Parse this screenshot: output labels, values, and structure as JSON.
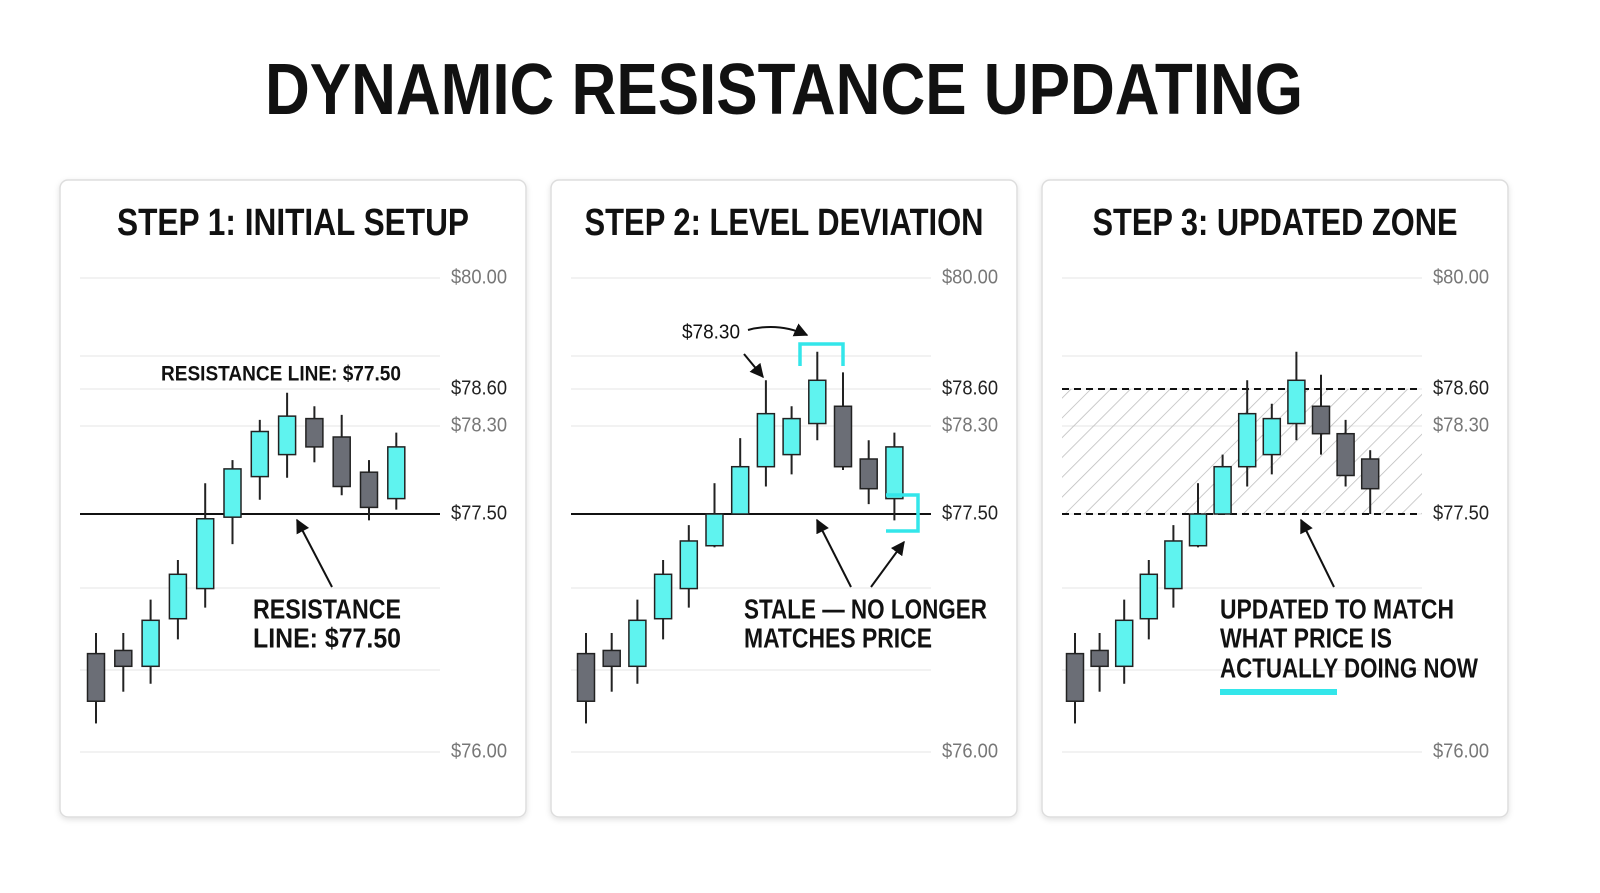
{
  "title": "DYNAMIC RESISTANCE UPDATING",
  "chart_data": [
    {
      "type": "candlestick",
      "title": "STEP 1: INITIAL SETUP",
      "yticks": [
        {
          "value": 80,
          "label": "$80.00"
        },
        {
          "value": 78.6,
          "label": "$78.60"
        },
        {
          "value": 78.3,
          "label": "$78.30"
        },
        {
          "value": 77.5,
          "label": "$77.50"
        },
        {
          "value": 76,
          "label": "$76.00"
        }
      ],
      "ylim": [
        76,
        80
      ],
      "open": [
        76.62,
        76.64,
        76.54,
        76.84,
        77.03,
        77.48,
        77.84,
        78.04,
        78.36,
        78.2,
        77.88,
        77.64
      ],
      "high": [
        76.75,
        76.75,
        76.96,
        77.21,
        77.78,
        77.99,
        78.35,
        78.57,
        78.46,
        78.39,
        77.99,
        78.24
      ],
      "low": [
        76.18,
        76.38,
        76.43,
        76.71,
        76.91,
        77.31,
        77.63,
        77.83,
        77.97,
        77.67,
        77.46,
        77.54
      ],
      "close": [
        76.32,
        76.54,
        76.83,
        77.12,
        77.47,
        77.91,
        78.25,
        78.38,
        78.11,
        77.75,
        77.56,
        78.11
      ],
      "up_color": "#5ff3ef",
      "down_color": "#6b6e76",
      "resistance": 77.5,
      "label": "RESISTANCE LINE: $77.50",
      "annotation": [
        "RESISTANCE",
        "LINE: $77.50"
      ]
    },
    {
      "type": "candlestick",
      "title": "STEP 2: LEVEL DEVIATION",
      "yticks": [
        {
          "value": 80,
          "label": "$80.00"
        },
        {
          "value": 78.6,
          "label": "$78.60"
        },
        {
          "value": 78.3,
          "label": "$78.30"
        },
        {
          "value": 77.5,
          "label": "$77.50"
        },
        {
          "value": 76,
          "label": "$76.00"
        }
      ],
      "ylim": [
        76,
        80
      ],
      "open": [
        76.62,
        76.64,
        76.54,
        76.84,
        77.03,
        77.3,
        77.5,
        77.93,
        78.04,
        78.32,
        78.46,
        78.0,
        77.64
      ],
      "high": [
        76.75,
        76.75,
        76.96,
        77.21,
        77.43,
        77.78,
        78.19,
        78.71,
        78.46,
        79.07,
        78.81,
        78.17,
        78.24
      ],
      "low": [
        76.18,
        76.38,
        76.43,
        76.71,
        76.91,
        77.29,
        77.5,
        77.75,
        77.86,
        78.17,
        77.9,
        77.59,
        77.46
      ],
      "close": [
        76.32,
        76.54,
        76.83,
        77.12,
        77.33,
        77.5,
        77.93,
        78.4,
        78.36,
        78.71,
        77.93,
        77.73,
        78.11
      ],
      "up_color": "#5ff3ef",
      "down_color": "#6b6e76",
      "resistance": 77.5,
      "label": "$78.30",
      "annotation": [
        "STALE — NO LONGER",
        "MATCHES PRICE"
      ]
    },
    {
      "type": "candlestick",
      "title": "STEP 3: UPDATED ZONE",
      "yticks": [
        {
          "value": 80,
          "label": "$80.00"
        },
        {
          "value": 78.6,
          "label": "$78.60"
        },
        {
          "value": 78.3,
          "label": "$78.30"
        },
        {
          "value": 77.5,
          "label": "$77.50"
        },
        {
          "value": 76,
          "label": "$76.00"
        }
      ],
      "ylim": [
        76,
        80
      ],
      "open": [
        76.62,
        76.64,
        76.54,
        76.84,
        77.03,
        77.3,
        77.5,
        77.93,
        78.04,
        78.32,
        78.46,
        78.23,
        78.0
      ],
      "high": [
        76.75,
        76.75,
        76.96,
        77.21,
        77.43,
        77.78,
        78.04,
        78.71,
        78.48,
        79.07,
        78.78,
        78.35,
        78.08
      ],
      "low": [
        76.18,
        76.38,
        76.43,
        76.71,
        76.91,
        77.29,
        77.5,
        77.75,
        77.86,
        78.17,
        78.04,
        77.75,
        77.5
      ],
      "close": [
        76.32,
        76.54,
        76.83,
        77.12,
        77.33,
        77.5,
        77.93,
        78.4,
        78.36,
        78.71,
        78.23,
        77.85,
        77.73
      ],
      "up_color": "#5ff3ef",
      "down_color": "#6b6e76",
      "zone": [
        77.5,
        78.6
      ],
      "annotation": [
        "UPDATED TO MATCH",
        "WHAT PRICE IS",
        "ACTUALLY DOING NOW"
      ]
    }
  ]
}
